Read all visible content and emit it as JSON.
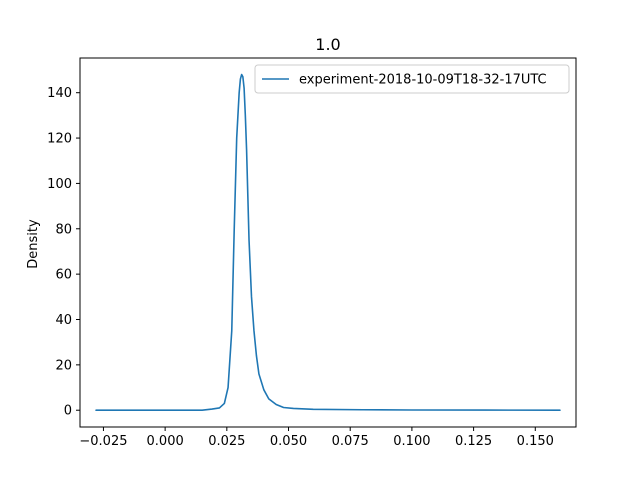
{
  "chart_data": {
    "type": "line",
    "title": "1.0",
    "xlabel": "",
    "ylabel": "Density",
    "xlim": [
      -0.0345,
      0.1665
    ],
    "ylim": [
      -7.4,
      155.3
    ],
    "xticks": [
      -0.025,
      0.0,
      0.025,
      0.05,
      0.075,
      0.1,
      0.125,
      0.15
    ],
    "xtick_labels": [
      "−0.025",
      "0.000",
      "0.025",
      "0.050",
      "0.075",
      "0.100",
      "0.125",
      "0.150"
    ],
    "yticks": [
      0,
      20,
      40,
      60,
      80,
      100,
      120,
      140
    ],
    "ytick_labels": [
      "0",
      "20",
      "40",
      "60",
      "80",
      "100",
      "120",
      "140"
    ],
    "grid": false,
    "legend_position": "top-right",
    "series": [
      {
        "name": "experiment-2018-10-09T18-32-17UTC",
        "color": "#1f77b4",
        "x": [
          -0.028,
          -0.01,
          0.005,
          0.015,
          0.019,
          0.022,
          0.024,
          0.0255,
          0.027,
          0.028,
          0.029,
          0.03,
          0.0305,
          0.031,
          0.0315,
          0.032,
          0.0325,
          0.033,
          0.0335,
          0.034,
          0.035,
          0.036,
          0.037,
          0.038,
          0.04,
          0.042,
          0.045,
          0.048,
          0.052,
          0.06,
          0.08,
          0.1,
          0.13,
          0.16
        ],
        "y": [
          0,
          0,
          0,
          0,
          0.5,
          1,
          3,
          10,
          35,
          80,
          120,
          140,
          146,
          148,
          147,
          142,
          130,
          115,
          95,
          75,
          50,
          35,
          24,
          16,
          9,
          5,
          2.5,
          1.2,
          0.8,
          0.4,
          0.2,
          0.1,
          0.05,
          0
        ]
      }
    ]
  }
}
